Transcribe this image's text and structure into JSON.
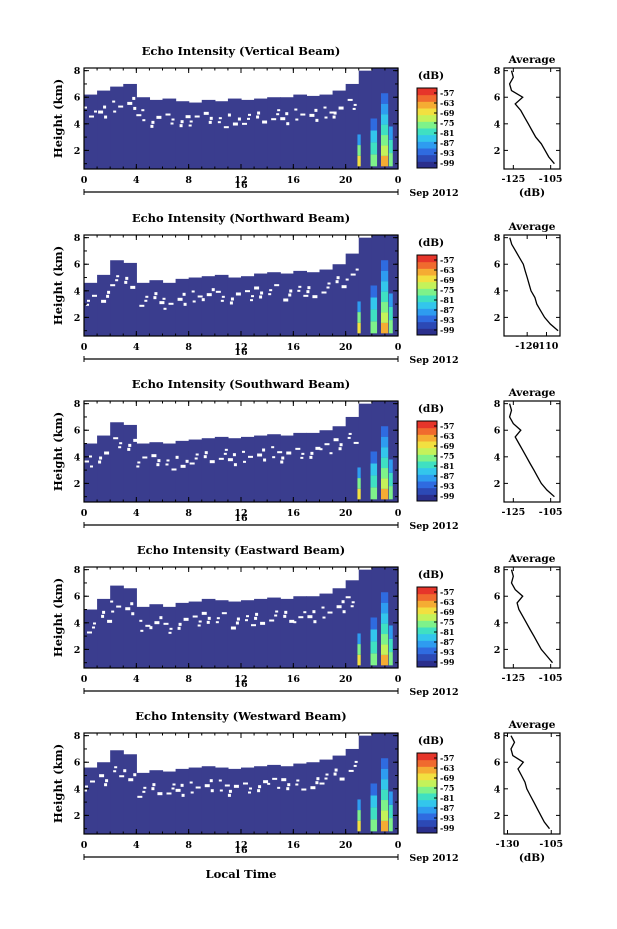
{
  "figure": {
    "xlabel": "Local Time",
    "date_label": "Sep 2012",
    "day_label": "16",
    "cbar_unit": "(dB)",
    "avg_title": "Average",
    "avg_xlabel": "(dB)",
    "colors": {
      "plot_fill": "#3a3d8e",
      "colormap": [
        "#2b2f8c",
        "#2c49b5",
        "#2f6be0",
        "#2e9cf0",
        "#33c6ec",
        "#3fe0c2",
        "#7ef28a",
        "#c4f25a",
        "#f2e040",
        "#f5ac33",
        "#f06a2e",
        "#e6352a"
      ]
    }
  },
  "chart_data": [
    {
      "type": "heatmap",
      "title": "Echo Intensity (Vertical Beam)",
      "xlabel": "Local Time",
      "ylabel": "Height (km)",
      "x_ticks": [
        "0",
        "4",
        "8",
        "12",
        "16",
        "20",
        "0"
      ],
      "xlim": [
        0,
        24
      ],
      "y_ticks": [
        "2",
        "4",
        "6",
        "8"
      ],
      "ylim": [
        0.6,
        8.2
      ],
      "colorbar": {
        "label": "(dB)",
        "ticks": [
          "-57",
          "-63",
          "-69",
          "-75",
          "-81",
          "-87",
          "-93",
          "-99"
        ]
      },
      "data_top_km": [
        6.2,
        6.5,
        6.8,
        7.0,
        6.0,
        5.8,
        5.9,
        5.7,
        5.6,
        5.8,
        5.7,
        5.9,
        5.8,
        5.9,
        6.0,
        6.0,
        6.2,
        6.1,
        6.2,
        6.5,
        7.0,
        8.0,
        8.2,
        8.2
      ],
      "average_profile": {
        "xlim": [
          -130,
          -100
        ],
        "x_ticks": [
          "-125",
          "-105"
        ],
        "y_ticks": [
          "2",
          "4",
          "6",
          "8"
        ],
        "ylim": [
          0.6,
          8.2
        ],
        "height": [
          1.0,
          1.5,
          2.0,
          2.5,
          3.0,
          3.5,
          4.0,
          4.5,
          5.0,
          5.5,
          6.0,
          6.5,
          7.0,
          7.5,
          8.0
        ],
        "value": [
          -103,
          -106,
          -108,
          -110,
          -113,
          -115,
          -117,
          -119,
          -121,
          -124,
          -120,
          -126,
          -127,
          -125,
          -126
        ]
      }
    },
    {
      "type": "heatmap",
      "title": "Echo Intensity (Northward Beam)",
      "xlabel": "Local Time",
      "ylabel": "Height (km)",
      "x_ticks": [
        "0",
        "4",
        "8",
        "12",
        "16",
        "20",
        "0"
      ],
      "xlim": [
        0,
        24
      ],
      "y_ticks": [
        "2",
        "4",
        "6",
        "8"
      ],
      "ylim": [
        0.6,
        8.2
      ],
      "colorbar": {
        "label": "(dB)",
        "ticks": [
          "-57",
          "-63",
          "-69",
          "-75",
          "-81",
          "-87",
          "-93",
          "-99"
        ]
      },
      "data_top_km": [
        4.6,
        5.2,
        6.3,
        6.1,
        4.6,
        4.8,
        4.6,
        4.9,
        5.0,
        5.1,
        5.2,
        5.0,
        5.1,
        5.3,
        5.4,
        5.3,
        5.5,
        5.4,
        5.6,
        6.0,
        6.8,
        8.0,
        8.2,
        8.2
      ],
      "average_profile": {
        "xlim": [
          -132,
          -103
        ],
        "x_ticks": [
          "-120",
          "-110"
        ],
        "y_ticks": [
          "2",
          "4",
          "6",
          "8"
        ],
        "ylim": [
          0.6,
          8.2
        ],
        "height": [
          1.0,
          1.5,
          2.0,
          2.5,
          3.0,
          3.5,
          4.0,
          4.5,
          5.0,
          5.5,
          6.0,
          6.5,
          7.0,
          7.5,
          8.0
        ],
        "value": [
          -104,
          -108,
          -111,
          -113,
          -115,
          -116,
          -118,
          -119,
          -120,
          -121,
          -122,
          -124,
          -126,
          -128,
          -129
        ]
      }
    },
    {
      "type": "heatmap",
      "title": "Echo Intensity (Southward Beam)",
      "xlabel": "Local Time",
      "ylabel": "Height (km)",
      "x_ticks": [
        "0",
        "4",
        "8",
        "12",
        "16",
        "20",
        "0"
      ],
      "xlim": [
        0,
        24
      ],
      "y_ticks": [
        "2",
        "4",
        "6",
        "8"
      ],
      "ylim": [
        0.6,
        8.2
      ],
      "colorbar": {
        "label": "(dB)",
        "ticks": [
          "-57",
          "-63",
          "-69",
          "-75",
          "-81",
          "-87",
          "-93",
          "-99"
        ]
      },
      "data_top_km": [
        5.0,
        5.6,
        6.6,
        6.4,
        5.0,
        5.1,
        5.0,
        5.2,
        5.3,
        5.4,
        5.5,
        5.4,
        5.5,
        5.6,
        5.7,
        5.6,
        5.8,
        5.8,
        6.0,
        6.3,
        7.0,
        8.0,
        8.2,
        8.2
      ],
      "average_profile": {
        "xlim": [
          -130,
          -100
        ],
        "x_ticks": [
          "-125",
          "-105"
        ],
        "y_ticks": [
          "2",
          "4",
          "6",
          "8"
        ],
        "ylim": [
          0.6,
          8.2
        ],
        "height": [
          1.0,
          1.5,
          2.0,
          2.5,
          3.0,
          3.5,
          4.0,
          4.5,
          5.0,
          5.5,
          6.0,
          6.5,
          7.0,
          7.5,
          8.0
        ],
        "value": [
          -103,
          -107,
          -110,
          -112,
          -114,
          -116,
          -118,
          -120,
          -122,
          -124,
          -121,
          -125,
          -127,
          -126,
          -127
        ]
      }
    },
    {
      "type": "heatmap",
      "title": "Echo Intensity (Eastward Beam)",
      "xlabel": "Local Time",
      "ylabel": "Height (km)",
      "x_ticks": [
        "0",
        "4",
        "8",
        "12",
        "16",
        "20",
        "0"
      ],
      "xlim": [
        0,
        24
      ],
      "y_ticks": [
        "2",
        "4",
        "6",
        "8"
      ],
      "ylim": [
        0.6,
        8.2
      ],
      "colorbar": {
        "label": "(dB)",
        "ticks": [
          "-57",
          "-63",
          "-69",
          "-75",
          "-81",
          "-87",
          "-93",
          "-99"
        ]
      },
      "data_top_km": [
        5.0,
        5.8,
        6.8,
        6.6,
        5.2,
        5.4,
        5.2,
        5.5,
        5.6,
        5.8,
        5.7,
        5.6,
        5.7,
        5.8,
        5.9,
        5.8,
        6.0,
        6.0,
        6.2,
        6.6,
        7.2,
        8.0,
        8.2,
        8.2
      ],
      "average_profile": {
        "xlim": [
          -130,
          -100
        ],
        "x_ticks": [
          "-125",
          "-105"
        ],
        "y_ticks": [
          "2",
          "4",
          "6",
          "8"
        ],
        "ylim": [
          0.6,
          8.2
        ],
        "height": [
          1.0,
          1.5,
          2.0,
          2.5,
          3.0,
          3.5,
          4.0,
          4.5,
          5.0,
          5.5,
          6.0,
          6.5,
          7.0,
          7.5,
          8.0
        ],
        "value": [
          -104,
          -107,
          -110,
          -112,
          -114,
          -116,
          -118,
          -120,
          -122,
          -123,
          -120,
          -124,
          -126,
          -125,
          -126
        ]
      }
    },
    {
      "type": "heatmap",
      "title": "Echo Intensity (Westward Beam)",
      "xlabel": "Local Time",
      "ylabel": "Height (km)",
      "x_ticks": [
        "0",
        "4",
        "8",
        "12",
        "16",
        "20",
        "0"
      ],
      "xlim": [
        0,
        24
      ],
      "y_ticks": [
        "2",
        "4",
        "6",
        "8"
      ],
      "ylim": [
        0.6,
        8.2
      ],
      "colorbar": {
        "label": "(dB)",
        "ticks": [
          "-57",
          "-63",
          "-69",
          "-75",
          "-81",
          "-87",
          "-93",
          "-99"
        ]
      },
      "data_top_km": [
        5.6,
        6.0,
        6.9,
        6.6,
        5.2,
        5.4,
        5.3,
        5.5,
        5.6,
        5.7,
        5.6,
        5.5,
        5.6,
        5.7,
        5.8,
        5.7,
        5.9,
        6.0,
        6.2,
        6.5,
        7.0,
        8.0,
        8.2,
        8.2
      ],
      "average_profile": {
        "xlim": [
          -132,
          -100
        ],
        "x_ticks": [
          "-130",
          "-105"
        ],
        "y_ticks": [
          "2",
          "4",
          "6",
          "8"
        ],
        "ylim": [
          0.6,
          8.2
        ],
        "height": [
          1.0,
          1.5,
          2.0,
          2.5,
          3.0,
          3.5,
          4.0,
          4.5,
          5.0,
          5.5,
          6.0,
          6.5,
          7.0,
          7.5,
          8.0
        ],
        "value": [
          -106,
          -109,
          -111,
          -113,
          -115,
          -117,
          -119,
          -120,
          -122,
          -124,
          -121,
          -127,
          -128,
          -126,
          -128
        ]
      }
    }
  ]
}
